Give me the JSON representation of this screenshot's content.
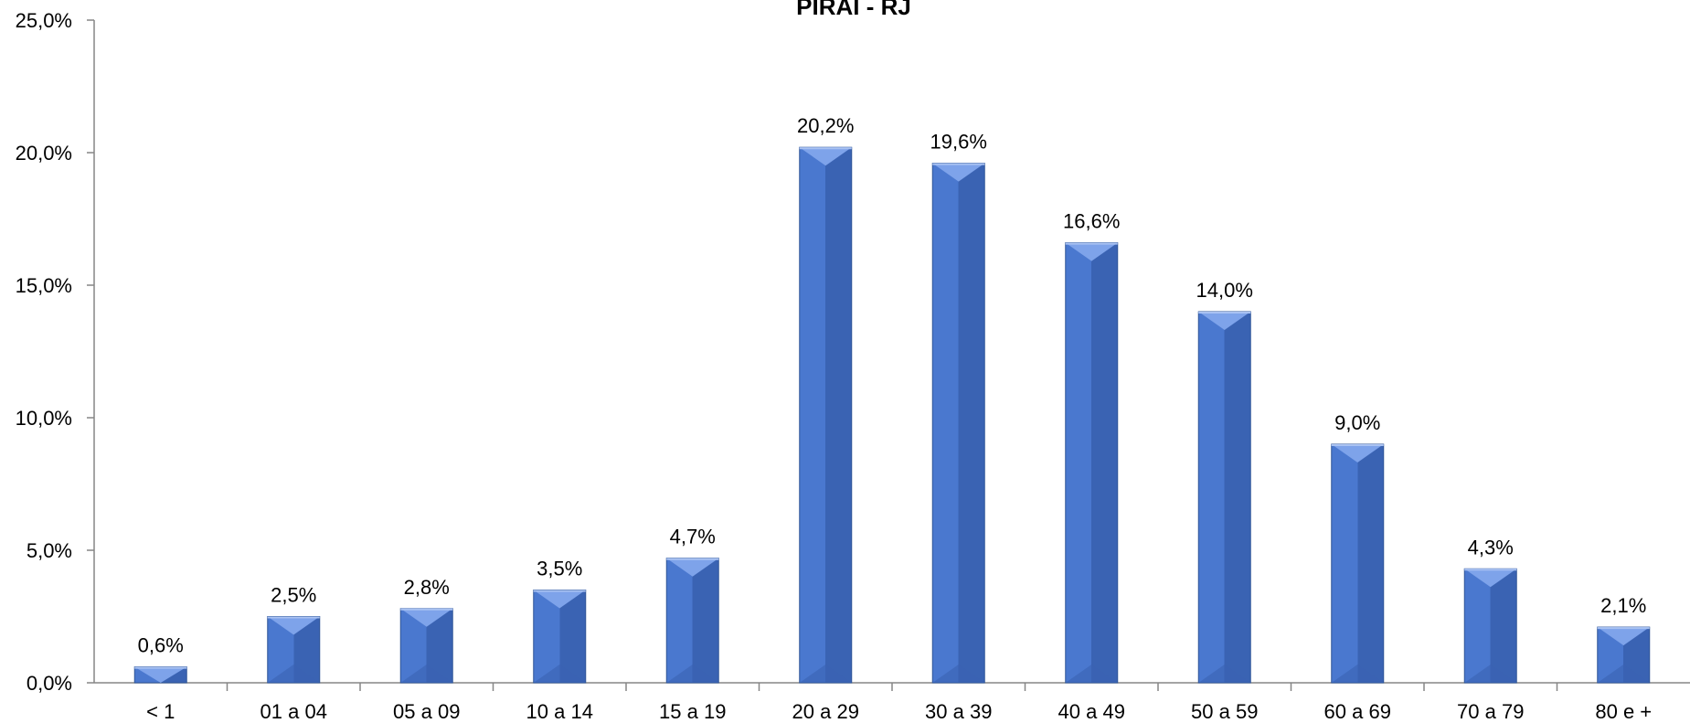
{
  "chart_data": {
    "type": "bar",
    "title": "PIRAÍ - RJ",
    "categories": [
      "< 1",
      "01 a 04",
      "05 a 09",
      "10 a 14",
      "15 a 19",
      "20 a 29",
      "30 a 39",
      "40 a 49",
      "50 a 59",
      "60 a 69",
      "70 a 79",
      "80 e +"
    ],
    "values": [
      0.6,
      2.5,
      2.8,
      3.5,
      4.7,
      20.2,
      19.6,
      16.6,
      14.0,
      9.0,
      4.3,
      2.1
    ],
    "value_labels": [
      "0,6%",
      "2,5%",
      "2,8%",
      "3,5%",
      "4,7%",
      "20,2%",
      "19,6%",
      "16,6%",
      "14,0%",
      "9,0%",
      "4,3%",
      "2,1%"
    ],
    "y_ticks": [
      0,
      5,
      10,
      15,
      20,
      25
    ],
    "y_tick_labels": [
      "0,0%",
      "5,0%",
      "10,0%",
      "15,0%",
      "20,0%",
      "25,0%"
    ],
    "ylim": [
      0,
      25
    ],
    "xlabel": "",
    "ylabel": "",
    "grid": false,
    "legend": "none",
    "colors": {
      "bar_main": "#4a78cf",
      "bar_light": "#7ea3ea",
      "bar_dark": "#3a63b3",
      "bar_edge": "#2f5597",
      "axis": "#868686"
    }
  }
}
